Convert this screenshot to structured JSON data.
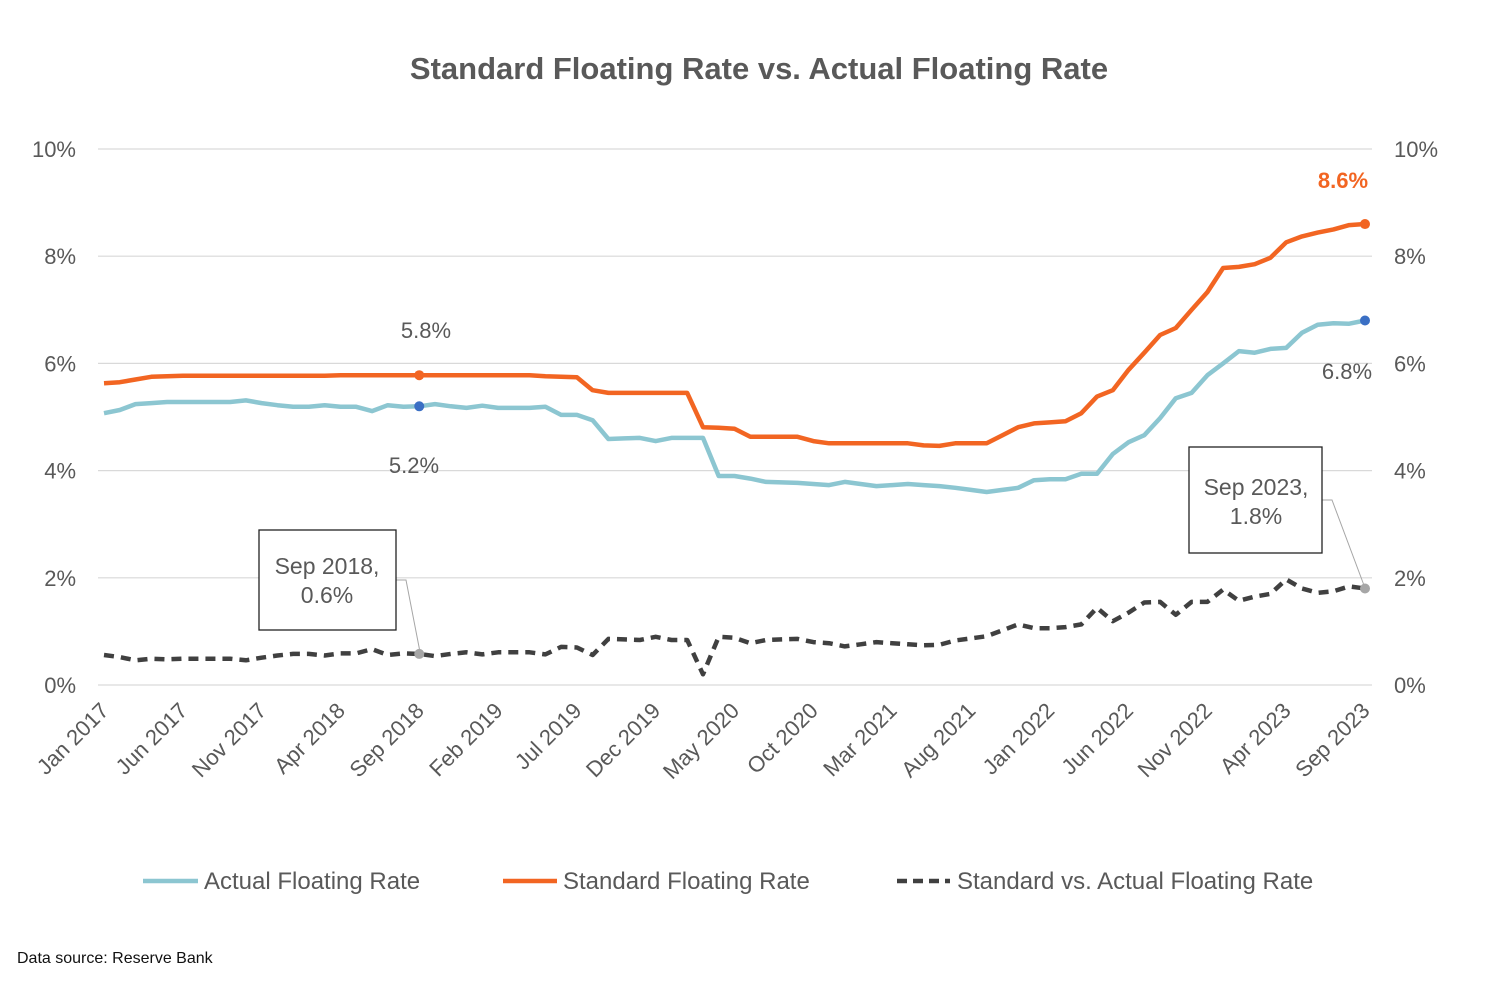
{
  "chart_data": {
    "type": "line",
    "title": "Standard Floating Rate vs. Actual Floating Rate",
    "x_start": "Jan 2017",
    "x_end": "Sep 2023",
    "x_frequency": "monthly",
    "x_tick_labels": [
      "Jan 2017",
      "Jun 2017",
      "Nov 2017",
      "Apr 2018",
      "Sep 2018",
      "Feb 2019",
      "Jul 2019",
      "Dec 2019",
      "May 2020",
      "Oct 2020",
      "Mar 2021",
      "Aug 2021",
      "Jan 2022",
      "Jun 2022",
      "Nov 2022",
      "Apr 2023",
      "Sep 2023"
    ],
    "ylim": [
      0,
      10
    ],
    "y_tick_labels": [
      "0%",
      "2%",
      "4%",
      "6%",
      "8%",
      "10%"
    ],
    "y_ticks": [
      0,
      2,
      4,
      6,
      8,
      10
    ],
    "secondary_y_axis": true,
    "grid": true,
    "legend_position": "bottom",
    "series": [
      {
        "name": "Actual Floating Rate",
        "color": "#8cc6d1",
        "style": "solid",
        "values": [
          5.07,
          5.13,
          5.24,
          5.26,
          5.28,
          5.28,
          5.28,
          5.28,
          5.28,
          5.31,
          5.26,
          5.22,
          5.19,
          5.19,
          5.22,
          5.19,
          5.19,
          5.11,
          5.22,
          5.19,
          5.2,
          5.24,
          5.2,
          5.17,
          5.21,
          5.17,
          5.17,
          5.17,
          5.19,
          5.04,
          5.04,
          4.94,
          4.59,
          4.6,
          4.61,
          4.55,
          4.61,
          4.61,
          4.61,
          3.9,
          3.9,
          3.85,
          3.79,
          3.78,
          3.77,
          3.75,
          3.73,
          3.79,
          3.75,
          3.71,
          3.73,
          3.75,
          3.73,
          3.71,
          3.68,
          3.64,
          3.6,
          3.64,
          3.68,
          3.82,
          3.84,
          3.84,
          3.94,
          3.94,
          4.31,
          4.53,
          4.66,
          4.98,
          5.35,
          5.45,
          5.78,
          6.0,
          6.23,
          6.2,
          6.27,
          6.29,
          6.57,
          6.72,
          6.75,
          6.74,
          6.8
        ]
      },
      {
        "name": "Standard Floating Rate",
        "color": "#f26522",
        "style": "solid",
        "values": [
          5.63,
          5.65,
          5.7,
          5.75,
          5.76,
          5.77,
          5.77,
          5.77,
          5.77,
          5.77,
          5.77,
          5.77,
          5.77,
          5.77,
          5.77,
          5.78,
          5.78,
          5.78,
          5.78,
          5.78,
          5.78,
          5.78,
          5.78,
          5.78,
          5.78,
          5.78,
          5.78,
          5.78,
          5.76,
          5.75,
          5.74,
          5.5,
          5.45,
          5.45,
          5.45,
          5.45,
          5.45,
          5.45,
          4.81,
          4.8,
          4.78,
          4.63,
          4.63,
          4.63,
          4.63,
          4.55,
          4.51,
          4.51,
          4.51,
          4.51,
          4.51,
          4.51,
          4.47,
          4.46,
          4.51,
          4.51,
          4.51,
          4.66,
          4.81,
          4.88,
          4.9,
          4.92,
          5.07,
          5.38,
          5.5,
          5.88,
          6.2,
          6.53,
          6.66,
          7.0,
          7.33,
          7.78,
          7.8,
          7.85,
          7.97,
          8.26,
          8.37,
          8.44,
          8.5,
          8.58,
          8.6
        ]
      },
      {
        "name": "Standard vs. Actual Floating Rate",
        "color": "#404040",
        "style": "dashed",
        "values": [
          0.56,
          0.52,
          0.46,
          0.49,
          0.48,
          0.49,
          0.49,
          0.49,
          0.49,
          0.46,
          0.51,
          0.55,
          0.58,
          0.58,
          0.55,
          0.59,
          0.59,
          0.67,
          0.56,
          0.59,
          0.58,
          0.54,
          0.58,
          0.61,
          0.57,
          0.61,
          0.61,
          0.61,
          0.57,
          0.71,
          0.7,
          0.56,
          0.86,
          0.85,
          0.84,
          0.9,
          0.84,
          0.84,
          0.2,
          0.9,
          0.88,
          0.78,
          0.84,
          0.85,
          0.86,
          0.8,
          0.78,
          0.72,
          0.76,
          0.8,
          0.78,
          0.76,
          0.74,
          0.75,
          0.83,
          0.87,
          0.91,
          1.02,
          1.13,
          1.06,
          1.06,
          1.08,
          1.13,
          1.44,
          1.19,
          1.35,
          1.54,
          1.55,
          1.31,
          1.55,
          1.55,
          1.78,
          1.57,
          1.65,
          1.7,
          1.97,
          1.8,
          1.72,
          1.75,
          1.84,
          1.8
        ]
      }
    ],
    "annotations": {
      "standard_sep2018": "5.8%",
      "actual_sep2018": "5.2%",
      "standard_sep2023": "8.6%",
      "actual_sep2023": "6.8%",
      "diff_sep2018": [
        "Sep 2018,",
        "0.6%"
      ],
      "diff_sep2023": [
        "Sep 2023,",
        "1.8%"
      ]
    },
    "marker_colors": {
      "standard": "#f26522",
      "actual": "#3a6fc4",
      "diff": "#a6a6a6"
    }
  },
  "footer": {
    "source": "Data source:  Reserve Bank"
  }
}
